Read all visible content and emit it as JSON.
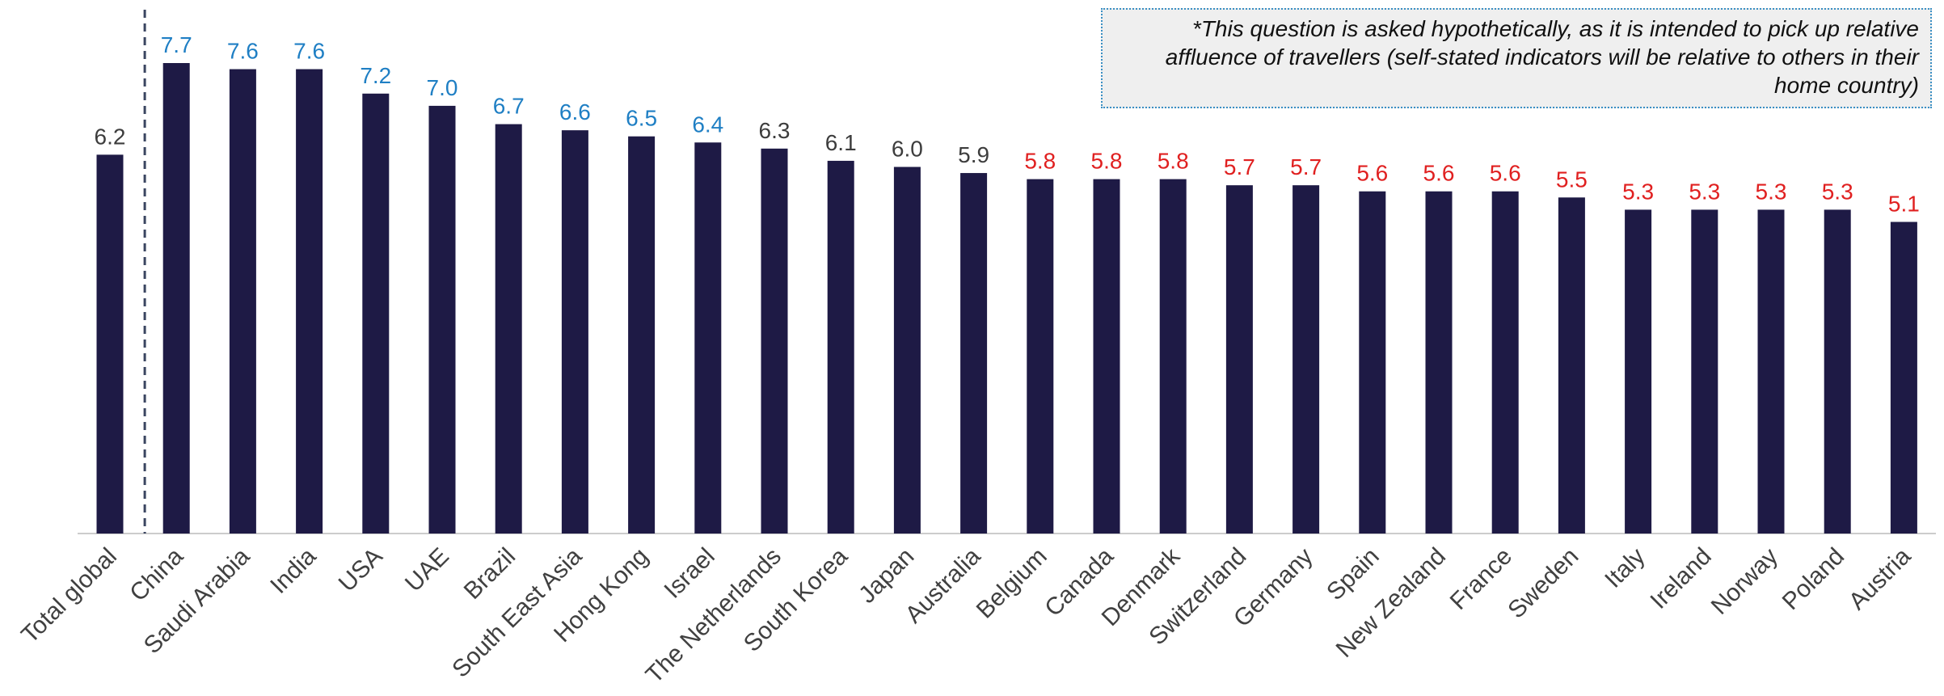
{
  "note": "*This question is asked hypothetically, as it is intended to pick up relative affluence of travellers (self-stated indicators will be relative to others in their home country)",
  "colors": {
    "bar": "#1e1a45",
    "label_high": "#1f7fc4",
    "label_mid": "#3d3d3d",
    "label_low": "#e02020",
    "axis": "#cccccc",
    "divider": "#3a4560"
  },
  "chart_data": {
    "type": "bar",
    "title": "",
    "xlabel": "",
    "ylabel": "",
    "ylim": [
      0,
      7.7
    ],
    "grid": false,
    "categories": [
      "Total global",
      "China",
      "Saudi Arabia",
      "India",
      "USA",
      "UAE",
      "Brazil",
      "South East Asia",
      "Hong Kong",
      "Israel",
      "The Netherlands",
      "South Korea",
      "Japan",
      "Australia",
      "Belgium",
      "Canada",
      "Denmark",
      "Switzerland",
      "Germany",
      "Spain",
      "New Zealand",
      "France",
      "Sweden",
      "Italy",
      "Ireland",
      "Norway",
      "Poland",
      "Austria"
    ],
    "values": [
      6.2,
      7.7,
      7.6,
      7.6,
      7.2,
      7.0,
      6.7,
      6.6,
      6.5,
      6.4,
      6.3,
      6.1,
      6.0,
      5.9,
      5.8,
      5.8,
      5.8,
      5.7,
      5.7,
      5.6,
      5.6,
      5.6,
      5.5,
      5.3,
      5.3,
      5.3,
      5.3,
      5.1
    ],
    "data_labels": [
      "6.2",
      "7.7",
      "7.6",
      "7.6",
      "7.2",
      "7.0",
      "6.7",
      "6.6",
      "6.5",
      "6.4",
      "6.3",
      "6.1",
      "6.0",
      "5.9",
      "5.8",
      "5.8",
      "5.8",
      "5.7",
      "5.7",
      "5.6",
      "5.6",
      "5.6",
      "5.5",
      "5.3",
      "5.3",
      "5.3",
      "5.3",
      "5.1"
    ],
    "label_groups": [
      "mid",
      "high",
      "high",
      "high",
      "high",
      "high",
      "high",
      "high",
      "high",
      "high",
      "mid",
      "mid",
      "mid",
      "mid",
      "low",
      "low",
      "low",
      "low",
      "low",
      "low",
      "low",
      "low",
      "low",
      "low",
      "low",
      "low",
      "low",
      "low"
    ],
    "divider_after_index": 0
  }
}
